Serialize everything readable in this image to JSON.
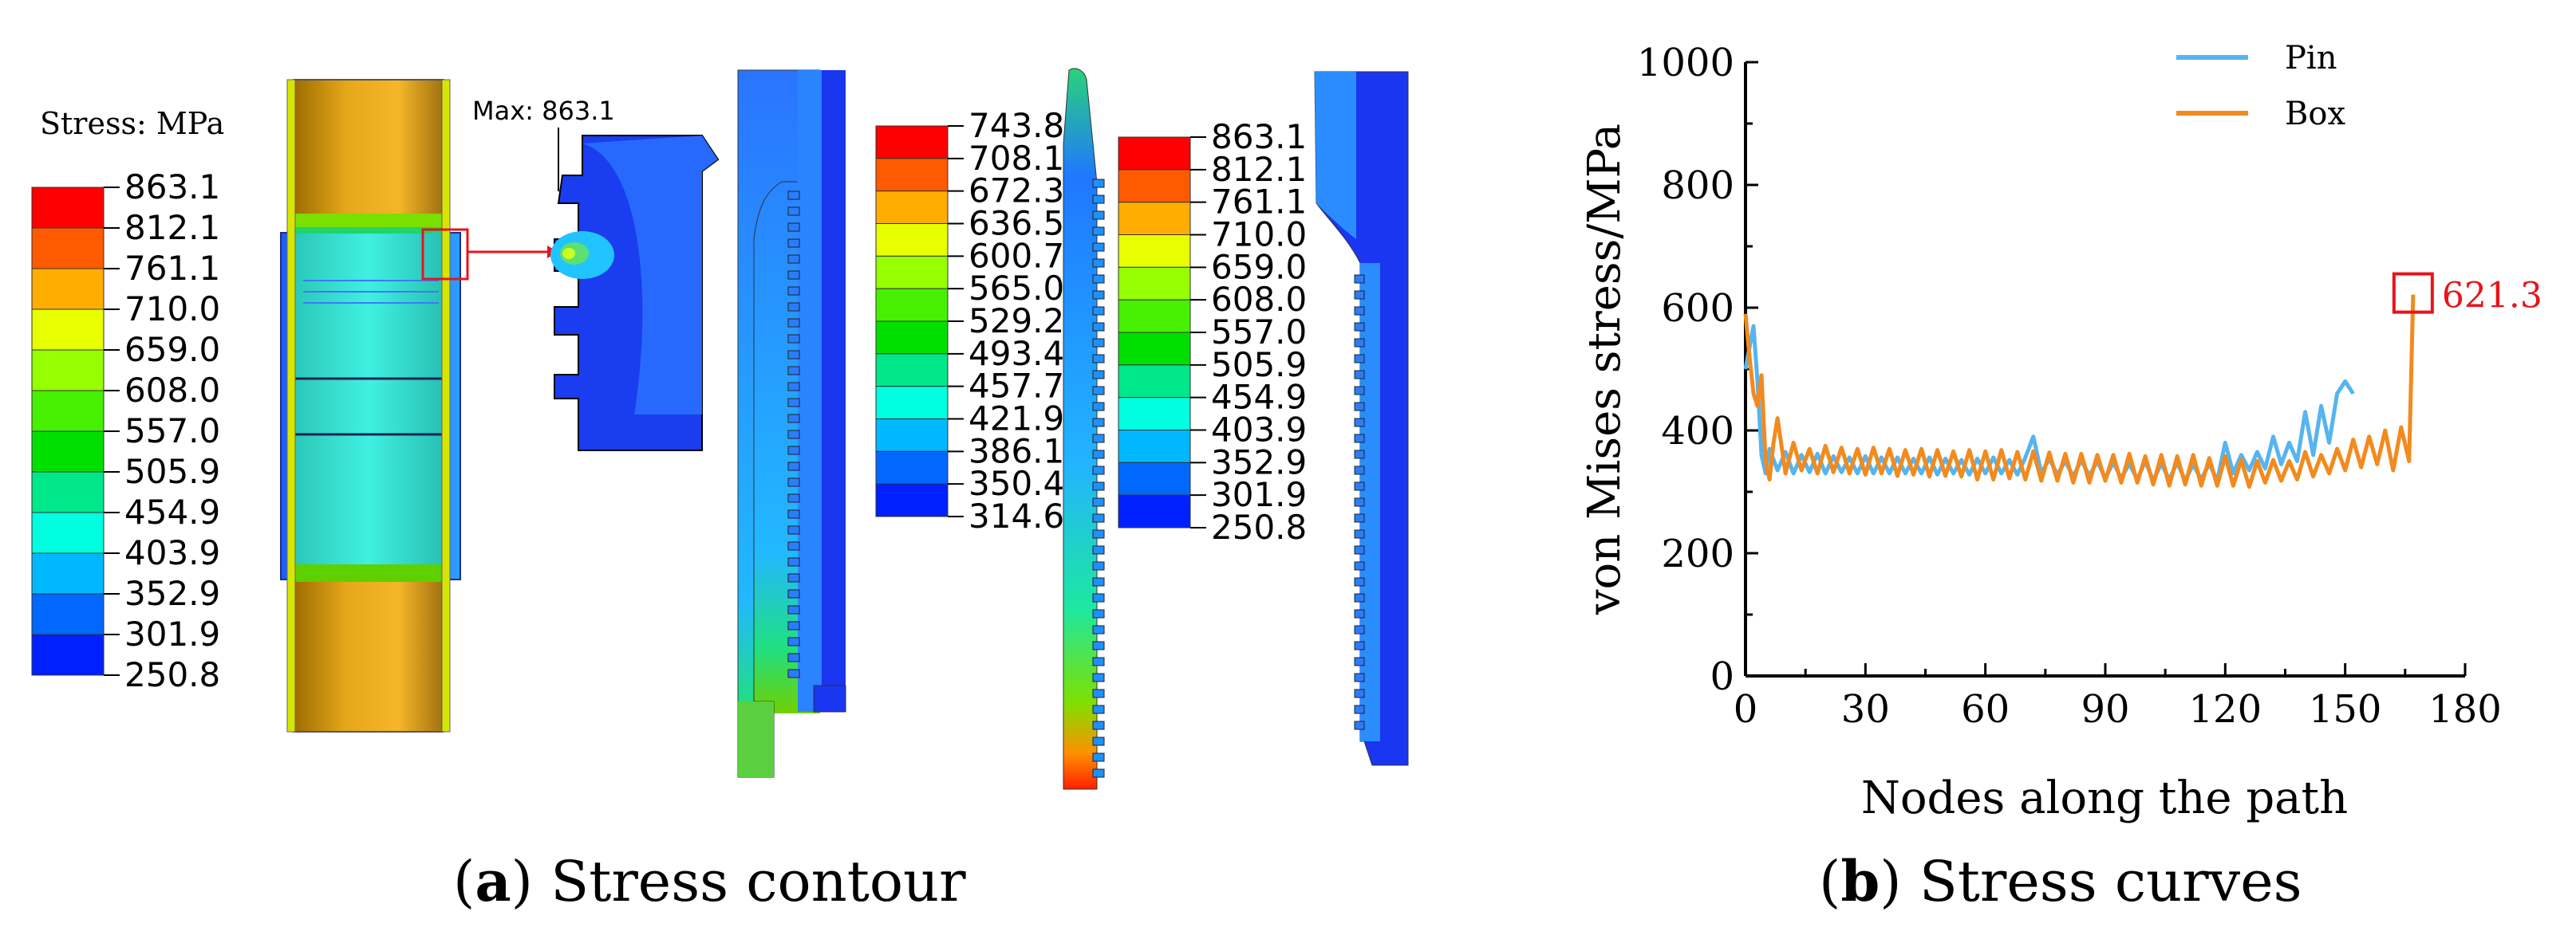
{
  "panel_a": {
    "caption_letter": "a",
    "caption_text": "Stress contour",
    "legend_title": "Stress: MPa",
    "legend1": {
      "values": [
        "863.1",
        "812.1",
        "761.1",
        "710.0",
        "659.0",
        "608.0",
        "557.0",
        "505.9",
        "454.9",
        "403.9",
        "352.9",
        "301.9",
        "250.8"
      ],
      "colors": [
        "#ff0000",
        "#ff5a00",
        "#ffad00",
        "#e8ff00",
        "#96ff00",
        "#46f000",
        "#00e000",
        "#00e88a",
        "#00ffe0",
        "#00b8ff",
        "#0068ff",
        "#0020ff"
      ]
    },
    "legend2": {
      "values": [
        "743.8",
        "708.1",
        "672.3",
        "636.5",
        "600.7",
        "565.0",
        "529.2",
        "493.4",
        "457.7",
        "421.9",
        "386.1",
        "350.4",
        "314.6"
      ],
      "colors": [
        "#ff0000",
        "#ff5a00",
        "#ffad00",
        "#e8ff00",
        "#96ff00",
        "#46f000",
        "#00e000",
        "#00e88a",
        "#00ffe0",
        "#00b8ff",
        "#0068ff",
        "#0020ff"
      ]
    },
    "legend3": {
      "values": [
        "863.1",
        "812.1",
        "761.1",
        "710.0",
        "659.0",
        "608.0",
        "557.0",
        "505.9",
        "454.9",
        "403.9",
        "352.9",
        "301.9",
        "250.8"
      ],
      "colors": [
        "#ff0000",
        "#ff5a00",
        "#ffad00",
        "#e8ff00",
        "#96ff00",
        "#46f000",
        "#00e000",
        "#00e88a",
        "#00ffe0",
        "#00b8ff",
        "#0068ff",
        "#0020ff"
      ]
    },
    "max_label": "Max: 863.1"
  },
  "panel_b": {
    "caption_letter": "b",
    "caption_text": "Stress curves"
  },
  "chart_data": {
    "type": "line",
    "xlabel": "Nodes along the path",
    "ylabel": "von Mises stress/MPa",
    "xlim": [
      0,
      180
    ],
    "ylim": [
      0,
      1000
    ],
    "xticks": [
      0,
      30,
      60,
      90,
      120,
      150,
      180
    ],
    "yticks": [
      0,
      200,
      400,
      600,
      800,
      1000
    ],
    "legend_position": "top-center",
    "series": [
      {
        "name": "Pin",
        "color": "#56b4f0",
        "x": [
          0,
          2,
          3,
          4,
          5,
          6,
          8,
          10,
          12,
          14,
          16,
          18,
          20,
          22,
          24,
          26,
          28,
          30,
          32,
          34,
          36,
          38,
          40,
          42,
          44,
          46,
          48,
          50,
          52,
          54,
          56,
          58,
          60,
          62,
          64,
          66,
          68,
          70,
          72,
          74,
          76,
          78,
          80,
          82,
          84,
          86,
          88,
          90,
          92,
          94,
          96,
          98,
          100,
          102,
          104,
          106,
          108,
          110,
          112,
          114,
          116,
          118,
          120,
          122,
          124,
          126,
          128,
          130,
          132,
          134,
          136,
          138,
          140,
          142,
          144,
          146,
          148,
          150,
          152
        ],
        "values": [
          500,
          570,
          480,
          360,
          330,
          370,
          335,
          365,
          330,
          360,
          332,
          362,
          330,
          358,
          332,
          356,
          330,
          358,
          330,
          356,
          330,
          356,
          330,
          354,
          330,
          356,
          328,
          354,
          330,
          352,
          328,
          354,
          330,
          356,
          330,
          352,
          328,
          356,
          390,
          330,
          354,
          328,
          350,
          325,
          352,
          326,
          350,
          322,
          348,
          322,
          346,
          320,
          350,
          318,
          346,
          320,
          348,
          318,
          345,
          320,
          346,
          318,
          380,
          330,
          360,
          335,
          365,
          338,
          390,
          345,
          380,
          350,
          430,
          360,
          440,
          380,
          460,
          480,
          460
        ]
      },
      {
        "name": "Box",
        "color": "#f28a1e",
        "x": [
          0,
          1,
          2,
          3,
          4,
          5,
          6,
          7,
          8,
          10,
          12,
          14,
          16,
          18,
          20,
          22,
          24,
          26,
          28,
          30,
          32,
          34,
          36,
          38,
          40,
          42,
          44,
          46,
          48,
          50,
          52,
          54,
          56,
          58,
          60,
          62,
          64,
          66,
          68,
          70,
          72,
          74,
          76,
          78,
          80,
          82,
          84,
          86,
          88,
          90,
          92,
          94,
          96,
          98,
          100,
          102,
          104,
          106,
          108,
          110,
          112,
          114,
          116,
          118,
          120,
          122,
          124,
          126,
          128,
          130,
          132,
          134,
          136,
          138,
          140,
          142,
          144,
          146,
          148,
          150,
          152,
          154,
          156,
          158,
          160,
          162,
          164,
          166,
          167
        ],
        "values": [
          590,
          520,
          460,
          440,
          490,
          350,
          320,
          380,
          420,
          330,
          380,
          335,
          370,
          330,
          375,
          332,
          372,
          330,
          370,
          328,
          372,
          330,
          370,
          326,
          368,
          328,
          370,
          325,
          368,
          326,
          366,
          325,
          368,
          320,
          366,
          320,
          368,
          322,
          365,
          320,
          366,
          318,
          364,
          318,
          362,
          315,
          362,
          315,
          360,
          318,
          360,
          315,
          362,
          315,
          358,
          312,
          360,
          310,
          358,
          312,
          360,
          310,
          355,
          310,
          358,
          310,
          352,
          308,
          350,
          315,
          352,
          318,
          350,
          320,
          365,
          325,
          360,
          330,
          370,
          335,
          385,
          340,
          390,
          345,
          400,
          335,
          405,
          350,
          621.3
        ]
      }
    ],
    "annotation": {
      "label": "621.3",
      "x": 167,
      "y": 621.3,
      "color": "#e8141a"
    }
  }
}
